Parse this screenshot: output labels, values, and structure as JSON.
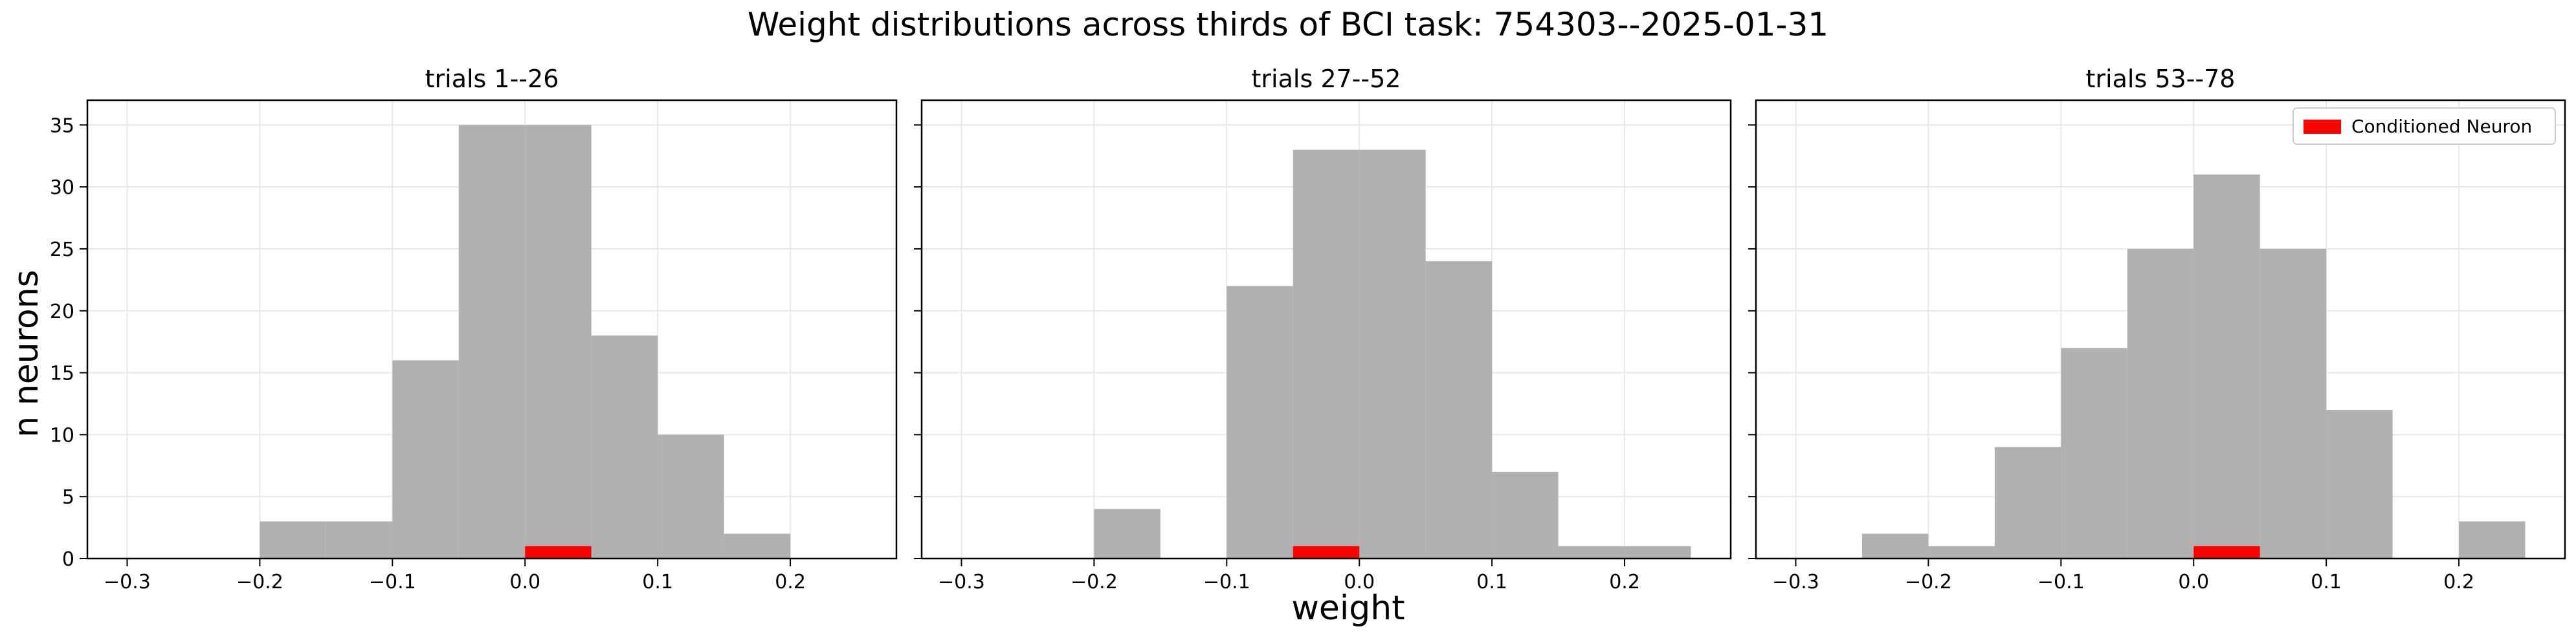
{
  "figure": {
    "title": "Weight distributions across thirds of BCI task: 754303--2025-01-31",
    "xlabel": "weight",
    "ylabel": "n neurons"
  },
  "colors": {
    "bars": "#b0b0b0",
    "conditioned": "#ff0000",
    "grid": "#e8e8e8",
    "axes": "#000000"
  },
  "legend": {
    "label": "Conditioned Neuron",
    "placement": "top-right",
    "panel": 2
  },
  "chart_data": [
    {
      "type": "bar",
      "title": "trials 1--26",
      "xlim": [
        -0.33,
        0.28
      ],
      "ylim": [
        0,
        37
      ],
      "xticks": [
        -0.3,
        -0.2,
        -0.1,
        0.0,
        0.1,
        0.2
      ],
      "xtick_labels": [
        "−0.3",
        "−0.2",
        "−0.1",
        "0.0",
        "0.1",
        "0.2"
      ],
      "yticks": [
        0,
        5,
        10,
        15,
        20,
        25,
        30,
        35
      ],
      "ytick_labels": [
        "0",
        "5",
        "10",
        "15",
        "20",
        "25",
        "30",
        "35"
      ],
      "grid": true,
      "bin_width": 0.05,
      "bins": [
        {
          "x0": -0.2,
          "count": 3
        },
        {
          "x0": -0.15,
          "count": 3
        },
        {
          "x0": -0.1,
          "count": 16
        },
        {
          "x0": -0.05,
          "count": 35
        },
        {
          "x0": 0.0,
          "count": 35
        },
        {
          "x0": 0.05,
          "count": 18
        },
        {
          "x0": 0.1,
          "count": 10
        },
        {
          "x0": 0.15,
          "count": 2
        }
      ],
      "conditioned_neuron": {
        "x0": 0.0,
        "x1": 0.05,
        "count": 1
      }
    },
    {
      "type": "bar",
      "title": "trials 27--52",
      "xlim": [
        -0.33,
        0.28
      ],
      "ylim": [
        0,
        37
      ],
      "xticks": [
        -0.3,
        -0.2,
        -0.1,
        0.0,
        0.1,
        0.2
      ],
      "xtick_labels": [
        "−0.3",
        "−0.2",
        "−0.1",
        "0.0",
        "0.1",
        "0.2"
      ],
      "yticks": [
        0,
        5,
        10,
        15,
        20,
        25,
        30,
        35
      ],
      "ytick_labels": [],
      "grid": true,
      "bin_width": 0.05,
      "bins": [
        {
          "x0": -0.2,
          "count": 4
        },
        {
          "x0": -0.1,
          "count": 22
        },
        {
          "x0": -0.05,
          "count": 33
        },
        {
          "x0": 0.0,
          "count": 33
        },
        {
          "x0": 0.05,
          "count": 24
        },
        {
          "x0": 0.1,
          "count": 7
        },
        {
          "x0": 0.15,
          "count": 1
        },
        {
          "x0": 0.2,
          "count": 1
        }
      ],
      "conditioned_neuron": {
        "x0": -0.05,
        "x1": 0.0,
        "count": 1
      }
    },
    {
      "type": "bar",
      "title": "trials 53--78",
      "xlim": [
        -0.33,
        0.28
      ],
      "ylim": [
        0,
        37
      ],
      "xticks": [
        -0.3,
        -0.2,
        -0.1,
        0.0,
        0.1,
        0.2
      ],
      "xtick_labels": [
        "−0.3",
        "−0.2",
        "−0.1",
        "0.0",
        "0.1",
        "0.2"
      ],
      "yticks": [
        0,
        5,
        10,
        15,
        20,
        25,
        30,
        35
      ],
      "ytick_labels": [],
      "grid": true,
      "bin_width": 0.05,
      "bins": [
        {
          "x0": -0.25,
          "count": 2
        },
        {
          "x0": -0.2,
          "count": 1
        },
        {
          "x0": -0.15,
          "count": 9
        },
        {
          "x0": -0.1,
          "count": 17
        },
        {
          "x0": -0.05,
          "count": 25
        },
        {
          "x0": 0.0,
          "count": 31
        },
        {
          "x0": 0.05,
          "count": 25
        },
        {
          "x0": 0.1,
          "count": 12
        },
        {
          "x0": 0.2,
          "count": 3
        }
      ],
      "conditioned_neuron": {
        "x0": 0.0,
        "x1": 0.05,
        "count": 1
      }
    }
  ]
}
